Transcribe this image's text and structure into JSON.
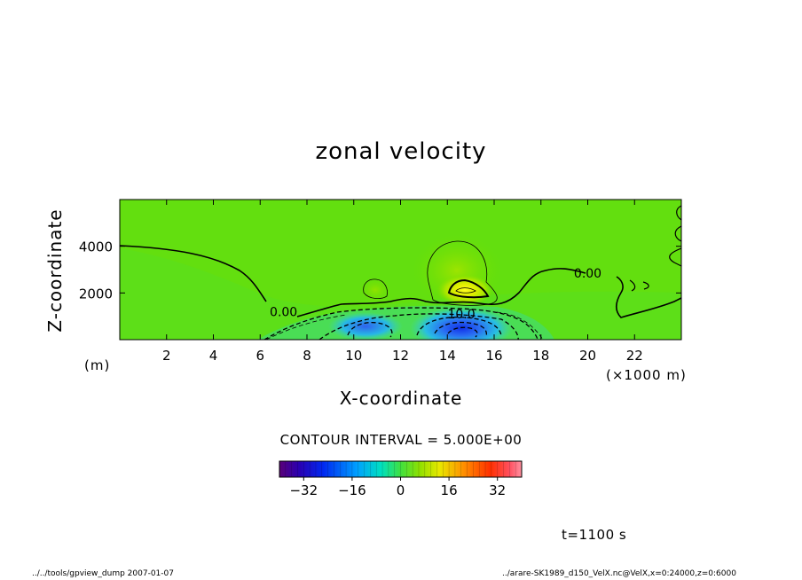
{
  "chart_data": {
    "type": "heatmap",
    "title": "zonal velocity",
    "xlabel": "X-coordinate",
    "ylabel": "Z-coordinate",
    "x_unit": "(×1000 m)",
    "y_unit": "(m)",
    "xlim": [
      0,
      24000
    ],
    "ylim": [
      0,
      6000
    ],
    "x_ticks": [
      2,
      4,
      6,
      8,
      10,
      12,
      14,
      16,
      18,
      20,
      22
    ],
    "y_ticks": [
      2000,
      4000
    ],
    "contour_labels": [
      {
        "text": "0.00",
        "x": 7000,
        "z": 1200
      },
      {
        "text": "0.00",
        "x": 20000,
        "z": 2850
      },
      {
        "text": "10.0",
        "x": 14600,
        "z": 1100
      }
    ],
    "contour_interval": "CONTOUR INTERVAL = 5.000E+00",
    "colorbar_ticks": [
      -32,
      -16,
      0,
      16,
      32
    ],
    "colorbar_range": [
      -40,
      40
    ],
    "features": [
      {
        "name": "positive jet core",
        "x": 14800,
        "z": 2100,
        "value": 17
      },
      {
        "name": "negative low-level core",
        "x": 14800,
        "z": 500,
        "value": -30
      },
      {
        "name": "weak positive cell",
        "x": 10900,
        "z": 2100,
        "value": 5
      }
    ],
    "time": "t=1100 s"
  },
  "footer": {
    "left": "../../tools/gpview_dump   2007-01-07",
    "right": "../arare-SK1989_d150_VelX.nc@VelX,x=0:24000,z=0:6000"
  },
  "colors": {
    "background_field": "#5bdf13",
    "zero_green": "#6ee000",
    "positive_yellow": "#e8f000",
    "negative_blue": "#1a3cf0",
    "contour": "#000000"
  }
}
